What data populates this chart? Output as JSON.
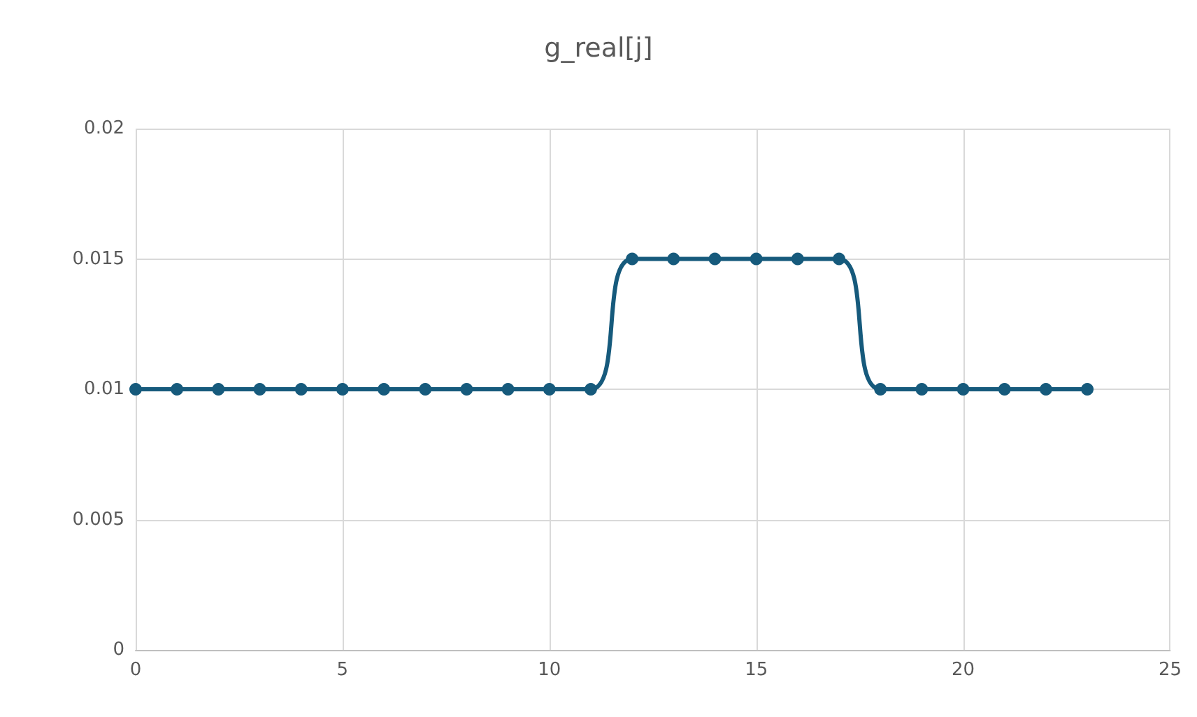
{
  "chart_data": {
    "type": "line",
    "title": "g_real[j]",
    "x": [
      0,
      1,
      2,
      3,
      4,
      5,
      6,
      7,
      8,
      9,
      10,
      11,
      12,
      13,
      14,
      15,
      16,
      17,
      18,
      19,
      20,
      21,
      22,
      23
    ],
    "series": [
      {
        "color": "#165a7c",
        "values": [
          0.01,
          0.01,
          0.01,
          0.01,
          0.01,
          0.01,
          0.01,
          0.01,
          0.01,
          0.01,
          0.01,
          0.01,
          0.015,
          0.015,
          0.015,
          0.015,
          0.015,
          0.015,
          0.01,
          0.01,
          0.01,
          0.01,
          0.01,
          0.01
        ]
      }
    ],
    "xlim": [
      0,
      25
    ],
    "xticks": [
      0,
      5,
      10,
      15,
      20,
      25
    ],
    "ylim": [
      0,
      0.02
    ],
    "yticks": [
      0,
      0.005,
      0.01,
      0.015,
      0.02
    ],
    "grid": true,
    "marker": "circle",
    "line_style": "solid"
  }
}
